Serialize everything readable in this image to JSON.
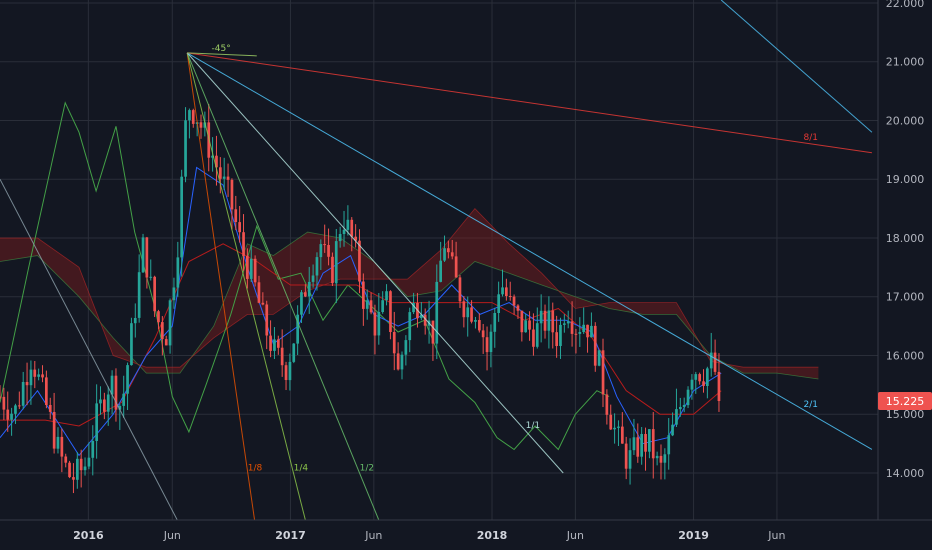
{
  "colors": {
    "background": "#131722",
    "grid": "#2a2e39",
    "axis_text": "#b2b5be",
    "candle_up": "#26a69a",
    "candle_down": "#ef5350",
    "tenkan": "#2962ff",
    "kijun": "#b71c1c",
    "chikou": "#43a047",
    "cloud_bull": "#1b5e20",
    "cloud_bear": "#7f1d1d",
    "price_tag": "#ef5350"
  },
  "chart_data": {
    "type": "candlestick",
    "title": "",
    "y_axis": {
      "side": "right",
      "range": [
        13.2,
        22.05
      ],
      "ticks": [
        "22.000",
        "21.000",
        "20.000",
        "19.000",
        "18.000",
        "17.000",
        "16.000",
        "15.000",
        "14.000"
      ],
      "tick_values": [
        22,
        21,
        20,
        19,
        18,
        17,
        16,
        15,
        14
      ]
    },
    "x_axis": {
      "range": [
        "2015-07-25",
        "2019-12-01"
      ],
      "ticks": [
        {
          "label": "2016",
          "date": "2016-01-01",
          "year": true
        },
        {
          "label": "Jun",
          "date": "2016-06-01",
          "year": false
        },
        {
          "label": "2017",
          "date": "2017-01-01",
          "year": true
        },
        {
          "label": "Jun",
          "date": "2017-06-01",
          "year": false
        },
        {
          "label": "2018",
          "date": "2018-01-01",
          "year": true
        },
        {
          "label": "Jun",
          "date": "2018-06-01",
          "year": false
        },
        {
          "label": "2019",
          "date": "2019-01-01",
          "year": true
        },
        {
          "label": "Jun",
          "date": "2019-06-01",
          "year": false
        }
      ]
    },
    "grid": true,
    "last_price": 15.225,
    "last_price_label": "15.225",
    "price_path": [
      [
        "2015-07-25",
        15.3
      ],
      [
        "2015-08-20",
        15.0
      ],
      [
        "2015-09-20",
        16.0
      ],
      [
        "2015-10-15",
        15.2
      ],
      [
        "2015-11-10",
        14.3
      ],
      [
        "2015-12-01",
        13.9
      ],
      [
        "2015-12-25",
        14.1
      ],
      [
        "2016-01-15",
        14.9
      ],
      [
        "2016-02-10",
        15.6
      ],
      [
        "2016-03-01",
        15.1
      ],
      [
        "2016-03-20",
        16.4
      ],
      [
        "2016-04-10",
        17.9
      ],
      [
        "2016-05-01",
        16.7
      ],
      [
        "2016-05-20",
        16.3
      ],
      [
        "2016-06-10",
        17.8
      ],
      [
        "2016-06-28",
        20.3
      ],
      [
        "2016-07-15",
        20.1
      ],
      [
        "2016-08-05",
        19.6
      ],
      [
        "2016-08-25",
        19.1
      ],
      [
        "2016-09-15",
        18.6
      ],
      [
        "2016-10-05",
        17.8
      ],
      [
        "2016-10-25",
        17.3
      ],
      [
        "2016-11-15",
        16.5
      ],
      [
        "2016-12-05",
        16.0
      ],
      [
        "2016-12-25",
        15.8
      ],
      [
        "2017-01-15",
        16.6
      ],
      [
        "2017-02-05",
        17.5
      ],
      [
        "2017-02-25",
        17.9
      ],
      [
        "2017-03-15",
        17.3
      ],
      [
        "2017-04-05",
        18.4
      ],
      [
        "2017-04-25",
        17.9
      ],
      [
        "2017-05-15",
        16.9
      ],
      [
        "2017-06-05",
        16.5
      ],
      [
        "2017-06-25",
        16.9
      ],
      [
        "2017-07-15",
        15.7
      ],
      [
        "2017-08-05",
        16.7
      ],
      [
        "2017-08-25",
        17.0
      ],
      [
        "2017-09-15",
        16.3
      ],
      [
        "2017-10-05",
        18.0
      ],
      [
        "2017-10-25",
        17.3
      ],
      [
        "2017-11-15",
        16.8
      ],
      [
        "2017-12-05",
        16.8
      ],
      [
        "2017-12-25",
        16.0
      ],
      [
        "2018-01-15",
        17.3
      ],
      [
        "2018-02-05",
        16.8
      ],
      [
        "2018-02-25",
        16.5
      ],
      [
        "2018-03-20",
        16.4
      ],
      [
        "2018-04-10",
        16.6
      ],
      [
        "2018-05-01",
        16.3
      ],
      [
        "2018-05-15",
        16.9
      ],
      [
        "2018-06-01",
        16.5
      ],
      [
        "2018-06-20",
        16.6
      ],
      [
        "2018-07-10",
        16.0
      ],
      [
        "2018-07-25",
        15.3
      ],
      [
        "2018-08-15",
        14.6
      ],
      [
        "2018-09-05",
        14.2
      ],
      [
        "2018-09-25",
        14.5
      ],
      [
        "2018-10-15",
        14.5
      ],
      [
        "2018-11-01",
        14.0
      ],
      [
        "2018-11-20",
        14.6
      ],
      [
        "2018-12-10",
        15.2
      ],
      [
        "2018-12-30",
        15.8
      ],
      [
        "2019-01-20",
        15.7
      ],
      [
        "2019-02-05",
        15.9
      ],
      [
        "2019-02-20",
        15.225
      ]
    ],
    "tenkan": [
      [
        "2015-07-25",
        14.6
      ],
      [
        "2015-10-01",
        15.4
      ],
      [
        "2015-12-15",
        14.3
      ],
      [
        "2016-02-15",
        15.0
      ],
      [
        "2016-04-15",
        16.0
      ],
      [
        "2016-06-01",
        16.5
      ],
      [
        "2016-07-15",
        19.2
      ],
      [
        "2016-09-01",
        18.9
      ],
      [
        "2016-10-15",
        17.5
      ],
      [
        "2016-12-01",
        16.2
      ],
      [
        "2017-01-15",
        16.5
      ],
      [
        "2017-03-01",
        17.4
      ],
      [
        "2017-04-20",
        17.7
      ],
      [
        "2017-06-01",
        16.7
      ],
      [
        "2017-07-15",
        16.5
      ],
      [
        "2017-09-01",
        16.7
      ],
      [
        "2017-10-20",
        17.2
      ],
      [
        "2017-12-10",
        16.7
      ],
      [
        "2018-02-01",
        16.9
      ],
      [
        "2018-03-20",
        16.6
      ],
      [
        "2018-05-15",
        16.6
      ],
      [
        "2018-07-01",
        16.4
      ],
      [
        "2018-08-15",
        15.3
      ],
      [
        "2018-10-01",
        14.5
      ],
      [
        "2018-11-15",
        14.6
      ],
      [
        "2019-01-01",
        15.4
      ],
      [
        "2019-02-20",
        15.7
      ]
    ],
    "kijun": [
      [
        "2015-07-25",
        14.9
      ],
      [
        "2015-10-15",
        14.9
      ],
      [
        "2015-12-15",
        14.8
      ],
      [
        "2016-03-01",
        15.2
      ],
      [
        "2016-05-01",
        16.3
      ],
      [
        "2016-07-01",
        17.6
      ],
      [
        "2016-09-01",
        17.9
      ],
      [
        "2016-11-01",
        17.6
      ],
      [
        "2017-01-01",
        17.2
      ],
      [
        "2017-03-01",
        17.2
      ],
      [
        "2017-05-01",
        17.2
      ],
      [
        "2017-07-01",
        16.9
      ],
      [
        "2017-09-01",
        16.9
      ],
      [
        "2017-11-01",
        16.9
      ],
      [
        "2018-01-01",
        16.9
      ],
      [
        "2018-03-01",
        16.6
      ],
      [
        "2018-05-01",
        16.8
      ],
      [
        "2018-07-01",
        16.3
      ],
      [
        "2018-09-01",
        15.4
      ],
      [
        "2018-11-01",
        15.0
      ],
      [
        "2019-01-01",
        15.0
      ],
      [
        "2019-02-20",
        15.4
      ]
    ],
    "chikou": [
      [
        "2015-07-25",
        15.2
      ],
      [
        "2015-09-15",
        17.5
      ],
      [
        "2015-11-01",
        19.5
      ],
      [
        "2015-11-20",
        20.3
      ],
      [
        "2015-12-15",
        19.8
      ],
      [
        "2016-01-15",
        18.8
      ],
      [
        "2016-02-20",
        19.9
      ],
      [
        "2016-03-25",
        18.1
      ],
      [
        "2016-05-01",
        16.8
      ],
      [
        "2016-06-01",
        15.3
      ],
      [
        "2016-07-01",
        14.7
      ],
      [
        "2016-08-01",
        15.5
      ],
      [
        "2016-09-15",
        16.7
      ],
      [
        "2016-11-01",
        18.2
      ],
      [
        "2016-12-10",
        17.3
      ],
      [
        "2017-01-20",
        17.4
      ],
      [
        "2017-03-01",
        16.6
      ],
      [
        "2017-04-15",
        17.2
      ],
      [
        "2017-06-01",
        16.8
      ],
      [
        "2017-07-15",
        16.4
      ],
      [
        "2017-09-01",
        16.6
      ],
      [
        "2017-10-15",
        15.6
      ],
      [
        "2017-12-01",
        15.2
      ],
      [
        "2018-01-10",
        14.6
      ],
      [
        "2018-02-10",
        14.4
      ],
      [
        "2018-03-20",
        14.8
      ],
      [
        "2018-05-01",
        14.4
      ],
      [
        "2018-06-01",
        15.0
      ],
      [
        "2018-07-10",
        15.4
      ],
      [
        "2018-08-01",
        15.3
      ]
    ],
    "cloud_a": [
      [
        "2015-07-25",
        17.6
      ],
      [
        "2015-10-01",
        17.7
      ],
      [
        "2015-12-15",
        17.0
      ],
      [
        "2016-02-15",
        16.3
      ],
      [
        "2016-04-15",
        15.7
      ],
      [
        "2016-06-15",
        15.7
      ],
      [
        "2016-08-15",
        16.5
      ],
      [
        "2016-10-15",
        17.9
      ],
      [
        "2016-12-01",
        17.7
      ],
      [
        "2017-02-01",
        18.1
      ],
      [
        "2017-04-01",
        18.0
      ],
      [
        "2017-06-01",
        17.6
      ],
      [
        "2017-08-01",
        17.0
      ],
      [
        "2017-10-01",
        17.1
      ],
      [
        "2017-12-01",
        17.6
      ],
      [
        "2018-02-01",
        17.4
      ],
      [
        "2018-04-01",
        17.2
      ],
      [
        "2018-06-01",
        17.0
      ],
      [
        "2018-08-01",
        16.8
      ],
      [
        "2018-10-01",
        16.7
      ],
      [
        "2018-12-01",
        16.7
      ],
      [
        "2019-02-01",
        16.0
      ],
      [
        "2019-04-01",
        15.7
      ],
      [
        "2019-06-01",
        15.7
      ],
      [
        "2019-08-15",
        15.6
      ]
    ],
    "cloud_b": [
      [
        "2015-07-25",
        18.0
      ],
      [
        "2015-10-01",
        18.0
      ],
      [
        "2015-12-15",
        17.5
      ],
      [
        "2016-02-15",
        16.0
      ],
      [
        "2016-04-15",
        15.8
      ],
      [
        "2016-06-15",
        15.8
      ],
      [
        "2016-08-15",
        16.3
      ],
      [
        "2016-10-15",
        16.7
      ],
      [
        "2016-12-01",
        16.7
      ],
      [
        "2017-02-01",
        17.1
      ],
      [
        "2017-04-01",
        17.3
      ],
      [
        "2017-06-01",
        17.3
      ],
      [
        "2017-08-01",
        17.3
      ],
      [
        "2017-10-01",
        17.8
      ],
      [
        "2017-12-01",
        18.5
      ],
      [
        "2018-02-01",
        17.9
      ],
      [
        "2018-04-01",
        17.4
      ],
      [
        "2018-06-01",
        16.8
      ],
      [
        "2018-08-01",
        16.9
      ],
      [
        "2018-10-01",
        16.9
      ],
      [
        "2018-12-01",
        16.9
      ],
      [
        "2019-02-01",
        15.9
      ],
      [
        "2019-04-01",
        15.8
      ],
      [
        "2019-06-01",
        15.8
      ],
      [
        "2019-08-15",
        15.8
      ]
    ],
    "gann_fan": {
      "origin": [
        "2016-06-28",
        21.15
      ],
      "lines": [
        {
          "label": "1/8",
          "color": "#e65100",
          "end": [
            "2016-10-28",
            13.2
          ]
        },
        {
          "label": "1/4",
          "color": "#8bc34a",
          "end": [
            "2017-01-28",
            13.2
          ]
        },
        {
          "label": "1/2",
          "color": "#66bb6a",
          "end": [
            "2017-06-10",
            13.2
          ]
        },
        {
          "label": "1/1",
          "color": "#b2dfdb",
          "end": [
            "2018-05-10",
            14.0
          ]
        },
        {
          "label": "2/1",
          "color": "#4fc3f7",
          "end": [
            "2019-11-20",
            14.4
          ]
        },
        {
          "label": "8/1",
          "color": "#e53935",
          "end": [
            "2019-11-20",
            19.45
          ]
        },
        {
          "label": "-45°",
          "color": "#9ccc65",
          "end": [
            "2016-11-01",
            21.1
          ]
        }
      ]
    },
    "trendlines": [
      {
        "color": "#90a4ae",
        "start": [
          "2015-07-25",
          19.0
        ],
        "end": [
          "2016-06-10",
          13.2
        ]
      },
      {
        "color": "#4fc3f7",
        "start": [
          "2019-02-20",
          22.05
        ],
        "end": [
          "2019-11-20",
          19.8
        ]
      }
    ]
  }
}
